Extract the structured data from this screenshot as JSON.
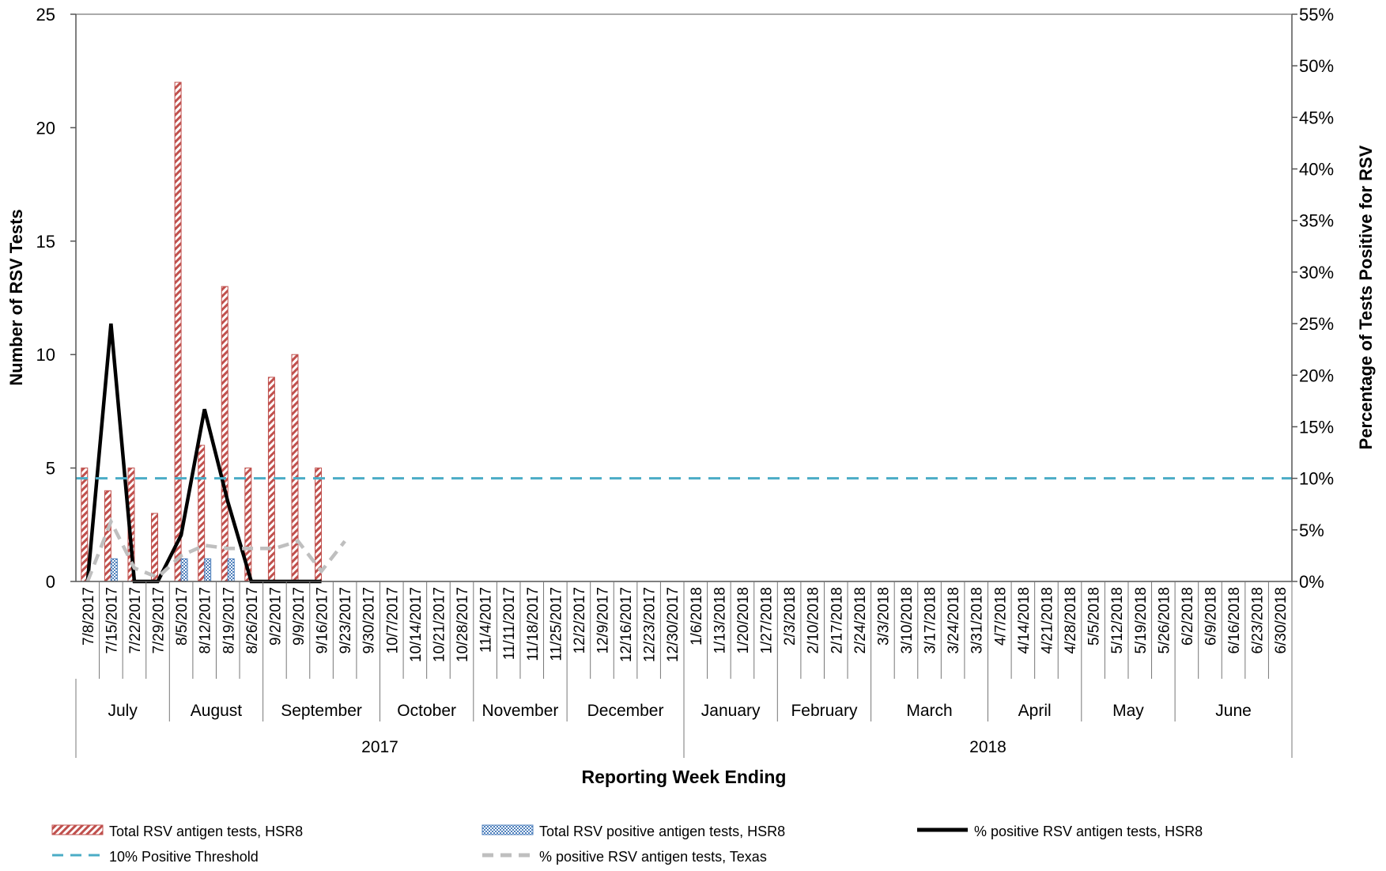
{
  "chart_data": {
    "type": "bar",
    "xlabel": "Reporting Week Ending",
    "ylabel_left": "Number of RSV Tests",
    "ylabel_right": "Percentage of Tests Positive for RSV",
    "ylim_left": [
      0,
      25
    ],
    "yticks_left": [
      0,
      5,
      10,
      15,
      20,
      25
    ],
    "ylim_right": [
      0,
      55
    ],
    "yticks_right": [
      "0%",
      "5%",
      "10%",
      "15%",
      "20%",
      "25%",
      "30%",
      "35%",
      "40%",
      "45%",
      "50%",
      "55%"
    ],
    "categories": [
      "7/8/2017",
      "7/15/2017",
      "7/22/2017",
      "7/29/2017",
      "8/5/2017",
      "8/12/2017",
      "8/19/2017",
      "8/26/2017",
      "9/2/2017",
      "9/9/2017",
      "9/16/2017",
      "9/23/2017",
      "9/30/2017",
      "10/7/2017",
      "10/14/2017",
      "10/21/2017",
      "10/28/2017",
      "11/4/2017",
      "11/11/2017",
      "11/18/2017",
      "11/25/2017",
      "12/2/2017",
      "12/9/2017",
      "12/16/2017",
      "12/23/2017",
      "12/30/2017",
      "1/6/2018",
      "1/13/2018",
      "1/20/2018",
      "1/27/2018",
      "2/3/2018",
      "2/10/2018",
      "2/17/2018",
      "2/24/2018",
      "3/3/2018",
      "3/10/2018",
      "3/17/2018",
      "3/24/2018",
      "3/31/2018",
      "4/7/2018",
      "4/14/2018",
      "4/21/2018",
      "4/28/2018",
      "5/5/2018",
      "5/12/2018",
      "5/19/2018",
      "5/26/2018",
      "6/2/2018",
      "6/9/2018",
      "6/16/2018",
      "6/23/2018",
      "6/30/2018"
    ],
    "months": [
      {
        "label": "July",
        "weeks": 4
      },
      {
        "label": "August",
        "weeks": 4
      },
      {
        "label": "September",
        "weeks": 5
      },
      {
        "label": "October",
        "weeks": 4
      },
      {
        "label": "November",
        "weeks": 4
      },
      {
        "label": "December",
        "weeks": 5
      },
      {
        "label": "January",
        "weeks": 4
      },
      {
        "label": "February",
        "weeks": 4
      },
      {
        "label": "March",
        "weeks": 5
      },
      {
        "label": "April",
        "weeks": 4
      },
      {
        "label": "May",
        "weeks": 4
      },
      {
        "label": "June",
        "weeks": 5
      }
    ],
    "years": [
      {
        "label": "2017",
        "weeks": 26
      },
      {
        "label": "2018",
        "weeks": 26
      }
    ],
    "bar_series": [
      {
        "name": "Total RSV antigen tests, HSR8",
        "color": "#c0504d",
        "values": [
          5,
          4,
          5,
          3,
          22,
          6,
          13,
          5,
          9,
          10,
          5
        ]
      },
      {
        "name": "Total RSV positive antigen tests, HSR8",
        "color": "#4f81bd",
        "values": [
          0,
          1,
          0,
          0,
          1,
          1,
          1,
          0,
          0,
          0,
          0
        ]
      }
    ],
    "line_series": [
      {
        "name": "% positive RSV antigen tests, HSR8",
        "color": "#000000",
        "dash": "solid",
        "values": [
          0,
          25,
          0,
          0,
          4.5,
          16.7,
          7.7,
          0,
          0,
          0,
          0
        ]
      },
      {
        "name": "% positive RSV antigen tests, Texas",
        "color": "#bfbfbf",
        "dash": "dashed",
        "values": [
          0,
          5.8,
          1.3,
          0.4,
          2.5,
          3.5,
          3.2,
          3.2,
          3.2,
          3.9,
          1,
          3.9
        ]
      },
      {
        "name": "10% Positive Threshold",
        "color": "#4bacc6",
        "dash": "dashed",
        "values": [
          10,
          10,
          10,
          10,
          10,
          10,
          10,
          10,
          10,
          10,
          10,
          10,
          10,
          10,
          10,
          10,
          10,
          10,
          10,
          10,
          10,
          10,
          10,
          10,
          10,
          10,
          10,
          10,
          10,
          10,
          10,
          10,
          10,
          10,
          10,
          10,
          10,
          10,
          10,
          10,
          10,
          10,
          10,
          10,
          10,
          10,
          10,
          10,
          10,
          10,
          10,
          10
        ]
      }
    ],
    "legend": [
      {
        "label": "Total RSV antigen tests, HSR8",
        "kind": "bar-red"
      },
      {
        "label": "Total RSV positive antigen tests, HSR8",
        "kind": "bar-blue"
      },
      {
        "label": "% positive RSV antigen tests, HSR8",
        "kind": "line-black"
      },
      {
        "label": "10% Positive Threshold",
        "kind": "line-blue-dash"
      },
      {
        "label": "% positive RSV antigen tests, Texas",
        "kind": "line-gray-dash"
      }
    ],
    "legend_position": "bottom"
  }
}
